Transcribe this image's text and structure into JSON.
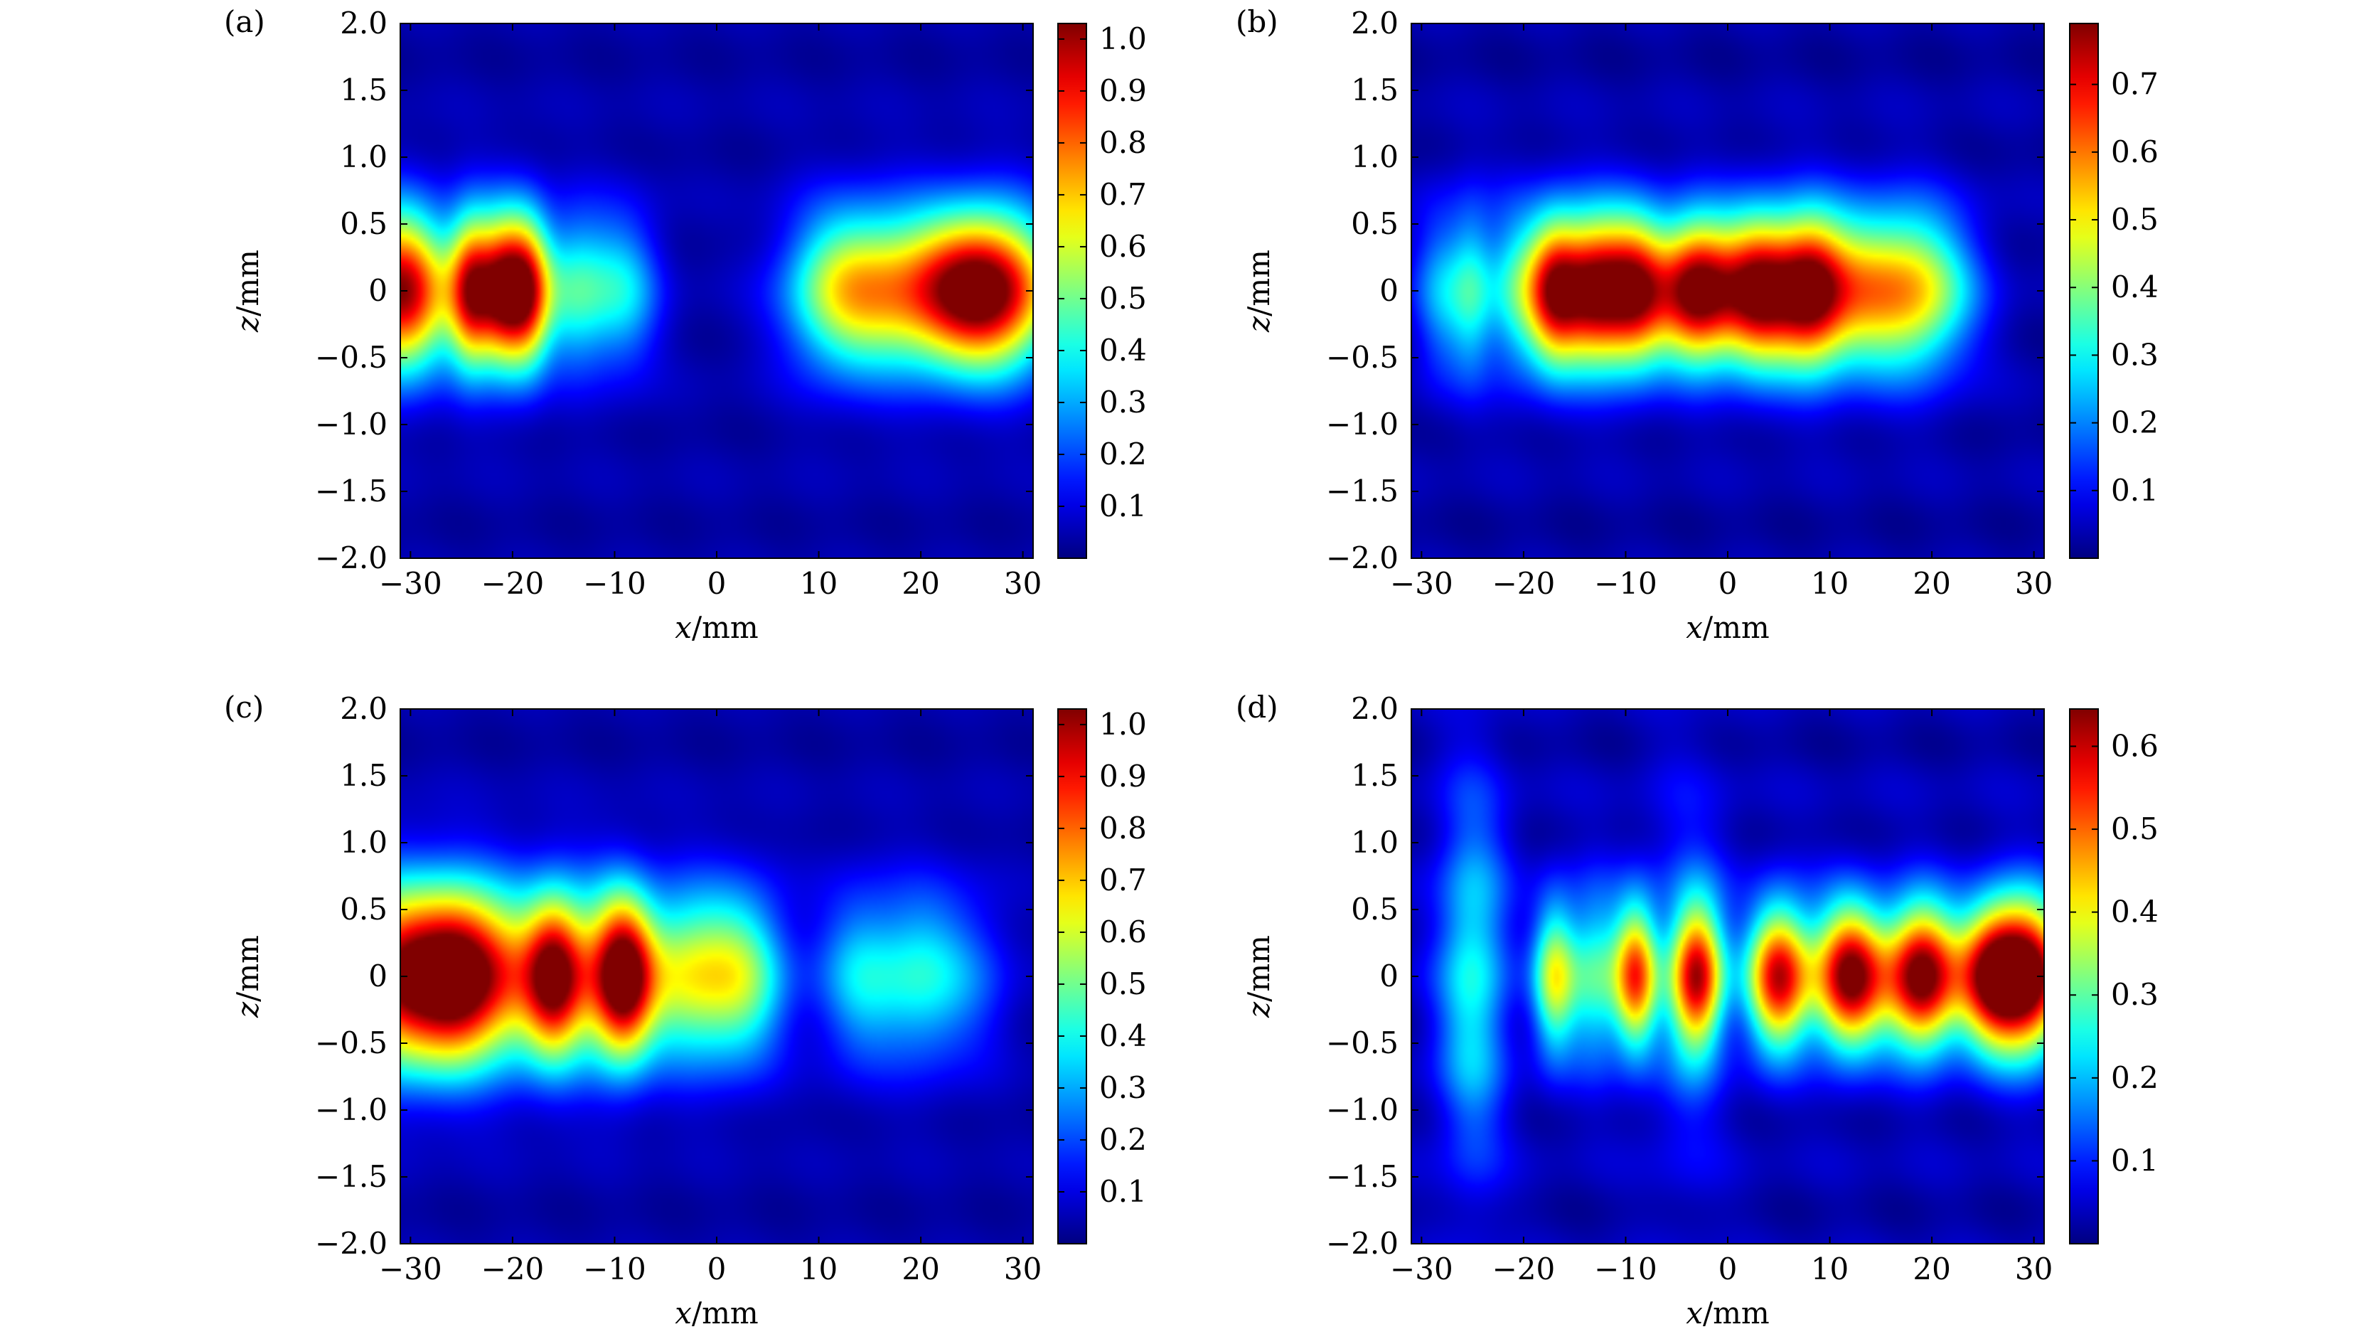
{
  "chart_data": [
    {
      "type": "heatmap",
      "panel_label": "(a)",
      "xlabel": "x/mm",
      "ylabel": "z/mm",
      "xlim": [
        -31,
        31
      ],
      "ylim": [
        -2.0,
        2.0
      ],
      "x_ticks": [
        -30,
        -20,
        -10,
        0,
        10,
        20,
        30
      ],
      "x_tick_labels": [
        "−30",
        "−20",
        "−10",
        "0",
        "10",
        "20",
        "30"
      ],
      "y_ticks": [
        2.0,
        1.5,
        1.0,
        0.5,
        0,
        -0.5,
        -1.0,
        -1.5,
        -2.0
      ],
      "y_tick_labels": [
        "2.0",
        "1.5",
        "1.0",
        "0.5",
        "0",
        "−0.5",
        "−1.0",
        "−1.5",
        "−2.0"
      ],
      "colorbar": {
        "min": 0,
        "max": 1.03,
        "ticks": [
          0.1,
          0.2,
          0.3,
          0.4,
          0.5,
          0.6,
          0.7,
          0.8,
          0.9,
          1.0
        ],
        "tick_labels": [
          "0.1",
          "0.2",
          "0.3",
          "0.4",
          "0.5",
          "0.6",
          "0.7",
          "0.8",
          "0.9",
          "1.0"
        ]
      },
      "colormap": "jet",
      "background_level": 0.04,
      "spots": [
        {
          "x": -31,
          "z": 0,
          "amp": 0.98,
          "sx": 3.5,
          "sz": 0.42
        },
        {
          "x": -24,
          "z": 0,
          "amp": 0.78,
          "sx": 1.6,
          "sz": 0.4
        },
        {
          "x": -21,
          "z": 0,
          "amp": 0.78,
          "sx": 1.6,
          "sz": 0.4
        },
        {
          "x": -18.5,
          "z": 0,
          "amp": 0.76,
          "sx": 1.6,
          "sz": 0.4
        },
        {
          "x": -14,
          "z": 0,
          "amp": 0.38,
          "sx": 2.5,
          "sz": 0.4
        },
        {
          "x": -9,
          "z": 0,
          "amp": 0.3,
          "sx": 2.5,
          "sz": 0.4
        },
        {
          "x": 12,
          "z": 0,
          "amp": 0.45,
          "sx": 4.0,
          "sz": 0.42
        },
        {
          "x": 19,
          "z": 0,
          "amp": 0.5,
          "sx": 5.0,
          "sz": 0.42
        },
        {
          "x": 25,
          "z": 0,
          "amp": 0.58,
          "sx": 4.0,
          "sz": 0.4
        },
        {
          "x": 29,
          "z": 0,
          "amp": 0.5,
          "sx": 4.0,
          "sz": 0.42
        }
      ]
    },
    {
      "type": "heatmap",
      "panel_label": "(b)",
      "xlabel": "x/mm",
      "ylabel": "z/mm",
      "xlim": [
        -31,
        31
      ],
      "ylim": [
        -2.0,
        2.0
      ],
      "x_ticks": [
        -30,
        -20,
        -10,
        0,
        10,
        20,
        30
      ],
      "x_tick_labels": [
        "−30",
        "−20",
        "−10",
        "0",
        "10",
        "20",
        "30"
      ],
      "y_ticks": [
        2.0,
        1.5,
        1.0,
        0.5,
        0,
        -0.5,
        -1.0,
        -1.5,
        -2.0
      ],
      "y_tick_labels": [
        "2.0",
        "1.5",
        "1.0",
        "0.5",
        "0",
        "−0.5",
        "−1.0",
        "−1.5",
        "−2.0"
      ],
      "colorbar": {
        "min": 0,
        "max": 0.79,
        "ticks": [
          0.1,
          0.2,
          0.3,
          0.4,
          0.5,
          0.6,
          0.7
        ],
        "tick_labels": [
          "0.1",
          "0.2",
          "0.3",
          "0.4",
          "0.5",
          "0.6",
          "0.7"
        ]
      },
      "colormap": "jet",
      "background_level": 0.03,
      "spots": [
        {
          "x": -28,
          "z": 0,
          "amp": 0.2,
          "sx": 2.0,
          "sz": 0.45
        },
        {
          "x": -25,
          "z": 0,
          "amp": 0.22,
          "sx": 1.5,
          "sz": 0.45
        },
        {
          "x": -21,
          "z": 0,
          "amp": 0.25,
          "sx": 2.0,
          "sz": 0.45
        },
        {
          "x": -17,
          "z": 0,
          "amp": 0.65,
          "sx": 2.0,
          "sz": 0.4
        },
        {
          "x": -13,
          "z": 0,
          "amp": 0.65,
          "sx": 2.2,
          "sz": 0.4
        },
        {
          "x": -9,
          "z": 0,
          "amp": 0.63,
          "sx": 2.2,
          "sz": 0.4
        },
        {
          "x": -3,
          "z": 0,
          "amp": 0.79,
          "sx": 2.8,
          "sz": 0.38
        },
        {
          "x": 3,
          "z": 0,
          "amp": 0.68,
          "sx": 2.5,
          "sz": 0.4
        },
        {
          "x": 8,
          "z": 0,
          "amp": 0.7,
          "sx": 2.5,
          "sz": 0.4
        },
        {
          "x": 13,
          "z": 0,
          "amp": 0.4,
          "sx": 3.0,
          "sz": 0.42
        },
        {
          "x": 18,
          "z": 0,
          "amp": 0.38,
          "sx": 3.0,
          "sz": 0.42
        },
        {
          "x": 22,
          "z": 0,
          "amp": 0.15,
          "sx": 3.0,
          "sz": 0.42
        }
      ]
    },
    {
      "type": "heatmap",
      "panel_label": "(c)",
      "xlabel": "x/mm",
      "ylabel": "z/mm",
      "xlim": [
        -31,
        31
      ],
      "ylim": [
        -2.0,
        2.0
      ],
      "x_ticks": [
        -30,
        -20,
        -10,
        0,
        10,
        20,
        30
      ],
      "x_tick_labels": [
        "−30",
        "−20",
        "−10",
        "0",
        "10",
        "20",
        "30"
      ],
      "y_ticks": [
        2.0,
        1.5,
        1.0,
        0.5,
        0,
        -0.5,
        -1.0,
        -1.5,
        -2.0
      ],
      "y_tick_labels": [
        "2.0",
        "1.5",
        "1.0",
        "0.5",
        "0",
        "−0.5",
        "−1.0",
        "−1.5",
        "−2.0"
      ],
      "colorbar": {
        "min": 0,
        "max": 1.03,
        "ticks": [
          0.1,
          0.2,
          0.3,
          0.4,
          0.5,
          0.6,
          0.7,
          0.8,
          0.9,
          1.0
        ],
        "tick_labels": [
          "0.1",
          "0.2",
          "0.3",
          "0.4",
          "0.5",
          "0.6",
          "0.7",
          "0.8",
          "0.9",
          "1.0"
        ]
      },
      "colormap": "jet",
      "background_level": 0.04,
      "spots": [
        {
          "x": -31,
          "z": 0,
          "amp": 0.95,
          "sx": 4.0,
          "sz": 0.48
        },
        {
          "x": -25,
          "z": 0,
          "amp": 0.8,
          "sx": 3.0,
          "sz": 0.45
        },
        {
          "x": -16,
          "z": 0,
          "amp": 0.72,
          "sx": 2.0,
          "sz": 0.42
        },
        {
          "x": -9,
          "z": 0,
          "amp": 0.72,
          "sx": 2.0,
          "sz": 0.42
        },
        {
          "x": -20,
          "z": 0,
          "amp": 0.48,
          "sx": 3.0,
          "sz": 0.48
        },
        {
          "x": -12,
          "z": 0,
          "amp": 0.48,
          "sx": 3.0,
          "sz": 0.48
        },
        {
          "x": -3,
          "z": 0,
          "amp": 0.55,
          "sx": 4.0,
          "sz": 0.45
        },
        {
          "x": 3,
          "z": 0,
          "amp": 0.36,
          "sx": 3.0,
          "sz": 0.45
        },
        {
          "x": 14,
          "z": 0,
          "amp": 0.3,
          "sx": 3.0,
          "sz": 0.45
        },
        {
          "x": 20,
          "z": 0,
          "amp": 0.3,
          "sx": 3.0,
          "sz": 0.45
        },
        {
          "x": 25,
          "z": 0,
          "amp": 0.15,
          "sx": 3.0,
          "sz": 0.45
        }
      ]
    },
    {
      "type": "heatmap",
      "panel_label": "(d)",
      "xlabel": "x/mm",
      "ylabel": "z/mm",
      "xlim": [
        -31,
        31
      ],
      "ylim": [
        -2.0,
        2.0
      ],
      "x_ticks": [
        -30,
        -20,
        -10,
        0,
        10,
        20,
        30
      ],
      "x_tick_labels": [
        "−30",
        "−20",
        "−10",
        "0",
        "10",
        "20",
        "30"
      ],
      "y_ticks": [
        2.0,
        1.5,
        1.0,
        0.5,
        0,
        -0.5,
        -1.0,
        -1.5,
        -2.0
      ],
      "y_tick_labels": [
        "2.0",
        "1.5",
        "1.0",
        "0.5",
        "0",
        "−0.5",
        "−1.0",
        "−1.5",
        "−2.0"
      ],
      "colorbar": {
        "min": 0,
        "max": 0.645,
        "ticks": [
          0.1,
          0.2,
          0.3,
          0.4,
          0.5,
          0.6
        ],
        "tick_labels": [
          "0.1",
          "0.2",
          "0.3",
          "0.4",
          "0.5",
          "0.6"
        ]
      },
      "colormap": "jet",
      "background_level": 0.03,
      "spots": [
        {
          "x": -25,
          "z": 0,
          "amp": 0.22,
          "sx": 2.5,
          "sz": 0.95
        },
        {
          "x": -17,
          "z": 0,
          "amp": 0.33,
          "sx": 1.5,
          "sz": 0.4
        },
        {
          "x": -13,
          "z": 0,
          "amp": 0.25,
          "sx": 2.0,
          "sz": 0.45
        },
        {
          "x": -9,
          "z": 0,
          "amp": 0.45,
          "sx": 1.5,
          "sz": 0.38
        },
        {
          "x": -4,
          "z": 0,
          "amp": 0.1,
          "sx": 3.0,
          "sz": 1.0
        },
        {
          "x": -3,
          "z": 0,
          "amp": 0.5,
          "sx": 1.8,
          "sz": 0.38
        },
        {
          "x": 5,
          "z": 0,
          "amp": 0.56,
          "sx": 2.2,
          "sz": 0.38
        },
        {
          "x": 12,
          "z": 0,
          "amp": 0.63,
          "sx": 2.5,
          "sz": 0.38
        },
        {
          "x": 19,
          "z": 0,
          "amp": 0.64,
          "sx": 2.5,
          "sz": 0.38
        },
        {
          "x": 26,
          "z": 0,
          "amp": 0.6,
          "sx": 2.5,
          "sz": 0.38
        },
        {
          "x": 30,
          "z": 0,
          "amp": 0.55,
          "sx": 2.5,
          "sz": 0.4
        }
      ]
    }
  ]
}
